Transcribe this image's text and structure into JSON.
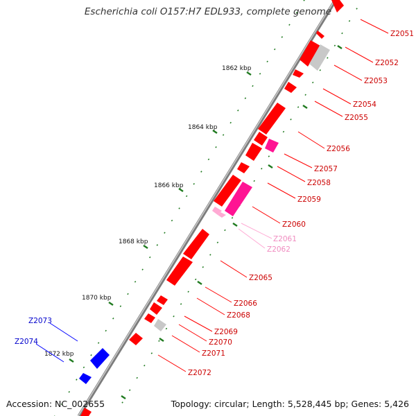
{
  "title": "Escherichia coli O157:H7 EDL933, complete genome",
  "accession": "Accession: NC_002655",
  "topology": "Topology: circular; Length: 5,528,445 bp; Genes: 5,426",
  "colors": {
    "backbone": "#8a8a8a",
    "tick": "#1f7a1f",
    "gene_red": "#ff0000",
    "gene_pink": "#ff1493",
    "gene_light_pink": "#ffaad4",
    "gene_gray": "#c0c0c0",
    "gene_blue": "#0000ff",
    "label_red": "#cc0000",
    "label_pink": "#f08cc0",
    "label_blue": "#0000cc"
  },
  "kbp_labels": [
    "1862 kbp",
    "1864 kbp",
    "1866 kbp",
    "1868 kbp",
    "1870 kbp",
    "1872 kbp"
  ],
  "genes": [
    {
      "label": "Z2051",
      "color": "red"
    },
    {
      "label": "Z2052",
      "color": "red"
    },
    {
      "label": "Z2053",
      "color": "red"
    },
    {
      "label": "Z2054",
      "color": "red"
    },
    {
      "label": "Z2055",
      "color": "red"
    },
    {
      "label": "Z2056",
      "color": "red"
    },
    {
      "label": "Z2057",
      "color": "red"
    },
    {
      "label": "Z2058",
      "color": "red"
    },
    {
      "label": "Z2059",
      "color": "red"
    },
    {
      "label": "Z2060",
      "color": "red"
    },
    {
      "label": "Z2061",
      "color": "pink"
    },
    {
      "label": "Z2062",
      "color": "pink"
    },
    {
      "label": "Z2065",
      "color": "red"
    },
    {
      "label": "Z2066",
      "color": "red"
    },
    {
      "label": "Z2068",
      "color": "red"
    },
    {
      "label": "Z2069",
      "color": "red"
    },
    {
      "label": "Z2070",
      "color": "red"
    },
    {
      "label": "Z2071",
      "color": "red"
    },
    {
      "label": "Z2072",
      "color": "red"
    },
    {
      "label": "Z2073",
      "color": "blue"
    },
    {
      "label": "Z2074",
      "color": "blue"
    }
  ]
}
